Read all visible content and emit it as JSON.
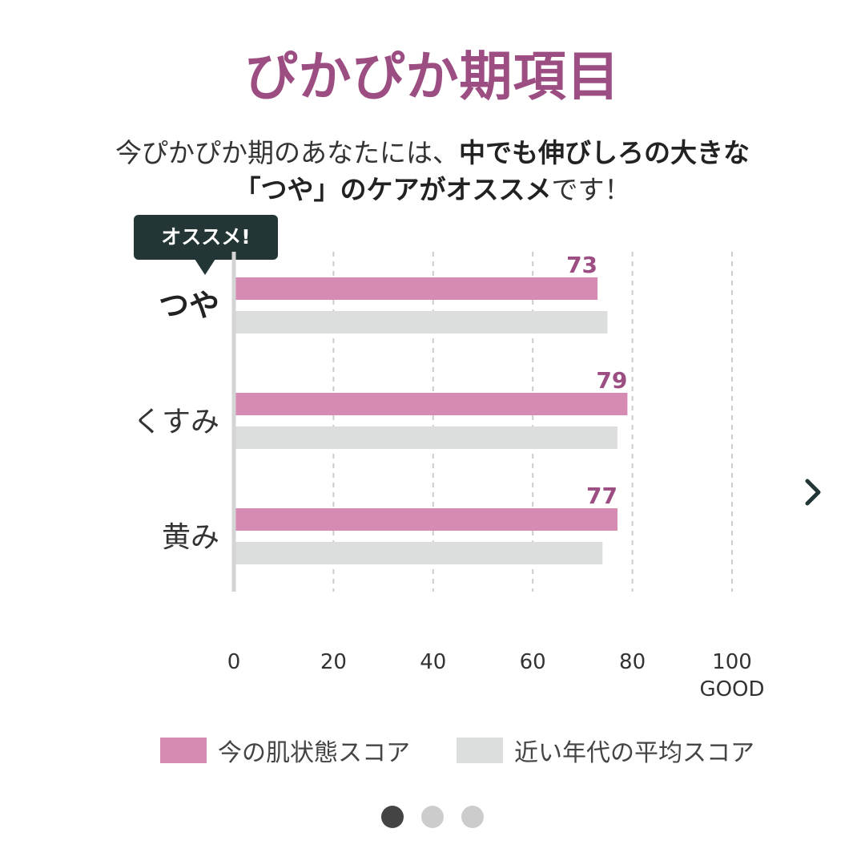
{
  "title": "ぴかぴか期項目",
  "subtitle": {
    "line1_normal": "今ぴかぴか期のあなたには、",
    "line1_bold": "中でも伸びしろの大きな",
    "line2_bold": "「つや」のケアがオススメ",
    "line2_normal": "です！"
  },
  "badge": "オススメ!",
  "colors": {
    "title": "#9c4e83",
    "current": "#d68bb3",
    "average": "#dcdedd",
    "label": "#9c4e83",
    "badge": "#243535"
  },
  "chart_data": {
    "type": "bar",
    "orientation": "horizontal",
    "categories": [
      "つや",
      "くすみ",
      "黄み"
    ],
    "highlighted_category": "つや",
    "series": [
      {
        "name": "今の肌状態スコア",
        "values": [
          73,
          79,
          77
        ],
        "show_labels": true
      },
      {
        "name": "近い年代の平均スコア",
        "values": [
          75,
          77,
          74
        ],
        "show_labels": false
      }
    ],
    "xlim": [
      0,
      100
    ],
    "xticks": [
      "0",
      "20",
      "40",
      "60",
      "80",
      "100"
    ],
    "xtick_extra": "GOOD",
    "grid": "dashed-vertical",
    "legend": "bottom"
  },
  "pagination": {
    "count": 3,
    "active": 0
  },
  "icons": {
    "next": "chevron-right-icon"
  }
}
